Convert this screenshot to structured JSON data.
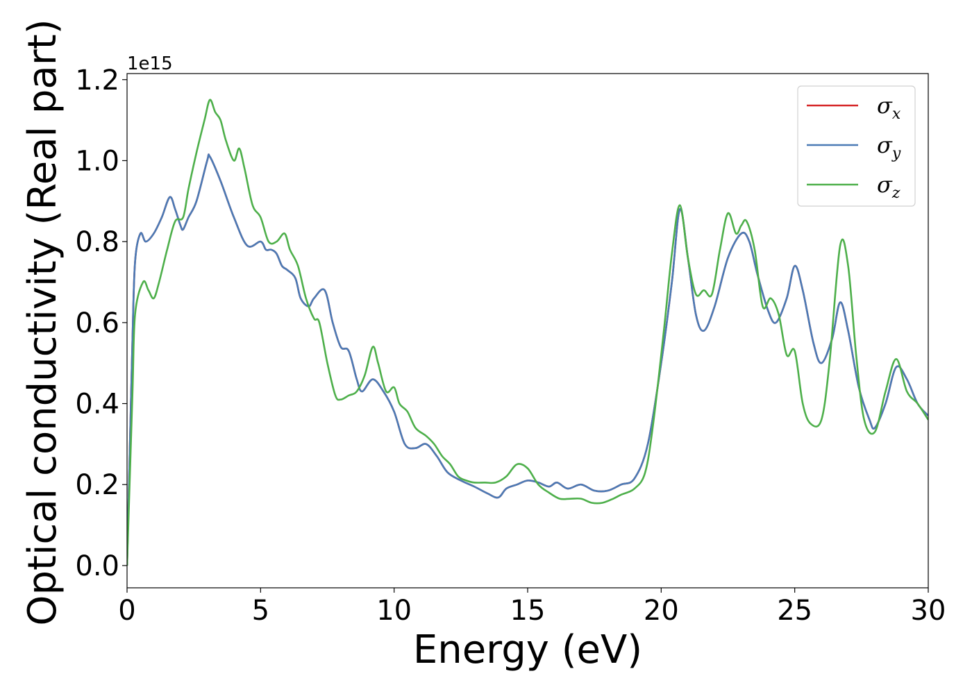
{
  "chart_data": {
    "type": "line",
    "xlabel": "Energy (eV)",
    "ylabel": "Optical conductivity (Real part)",
    "y_offset_text": "1e15",
    "xlim": [
      0,
      30
    ],
    "ylim": [
      -0.055,
      1.215
    ],
    "xticks": [
      0,
      5,
      10,
      15,
      20,
      25,
      30
    ],
    "xtick_labels": [
      "0",
      "5",
      "10",
      "15",
      "20",
      "25",
      "30"
    ],
    "yticks": [
      0.0,
      0.2,
      0.4,
      0.6,
      0.8,
      1.0,
      1.2
    ],
    "ytick_labels": [
      "0.0",
      "0.2",
      "0.4",
      "0.6",
      "0.8",
      "1.0",
      "1.2"
    ],
    "grid": false,
    "legend_position": "top-right",
    "series": [
      {
        "name": "σx",
        "legend_symbol": "σ",
        "legend_sub": "x",
        "color": "#d62728",
        "x": [
          0,
          0.2,
          0.3,
          0.5,
          0.7,
          1.0,
          1.3,
          1.6,
          1.8,
          2.0,
          2.1,
          2.3,
          2.6,
          3.0,
          3.1,
          3.5,
          4.0,
          4.5,
          5.0,
          5.2,
          5.4,
          5.6,
          5.8,
          6.0,
          6.3,
          6.5,
          6.8,
          7.0,
          7.4,
          7.7,
          8.0,
          8.3,
          8.6,
          8.8,
          9.2,
          9.6,
          10.0,
          10.4,
          10.8,
          11.2,
          11.6,
          12.0,
          12.5,
          13.0,
          13.5,
          13.9,
          14.2,
          14.6,
          15.0,
          15.4,
          15.8,
          16.1,
          16.5,
          17.0,
          17.5,
          18.0,
          18.5,
          19.0,
          19.5,
          20.0,
          20.4,
          20.7,
          21.0,
          21.3,
          21.6,
          22.0,
          22.5,
          23.0,
          23.3,
          23.6,
          24.0,
          24.3,
          24.7,
          25.0,
          25.3,
          25.7,
          26.0,
          26.4,
          26.7,
          27.0,
          27.4,
          27.8,
          28.0,
          28.4,
          28.8,
          29.2,
          29.6,
          30.0
        ],
        "y": [
          0.0,
          0.55,
          0.75,
          0.82,
          0.8,
          0.82,
          0.86,
          0.91,
          0.88,
          0.84,
          0.83,
          0.86,
          0.9,
          1.0,
          1.01,
          0.95,
          0.86,
          0.79,
          0.8,
          0.78,
          0.78,
          0.77,
          0.74,
          0.73,
          0.71,
          0.66,
          0.64,
          0.66,
          0.68,
          0.6,
          0.54,
          0.53,
          0.46,
          0.43,
          0.46,
          0.43,
          0.38,
          0.3,
          0.29,
          0.3,
          0.27,
          0.23,
          0.21,
          0.195,
          0.178,
          0.168,
          0.19,
          0.2,
          0.21,
          0.205,
          0.195,
          0.205,
          0.19,
          0.2,
          0.185,
          0.185,
          0.2,
          0.215,
          0.3,
          0.5,
          0.7,
          0.88,
          0.76,
          0.62,
          0.58,
          0.64,
          0.76,
          0.82,
          0.8,
          0.72,
          0.63,
          0.6,
          0.66,
          0.74,
          0.68,
          0.55,
          0.5,
          0.56,
          0.65,
          0.58,
          0.44,
          0.36,
          0.34,
          0.4,
          0.49,
          0.46,
          0.4,
          0.37
        ]
      },
      {
        "name": "σy",
        "legend_symbol": "σ",
        "legend_sub": "y",
        "color": "#4a7ab5",
        "x": [
          0,
          0.2,
          0.3,
          0.5,
          0.7,
          1.0,
          1.3,
          1.6,
          1.8,
          2.0,
          2.1,
          2.3,
          2.6,
          3.0,
          3.1,
          3.5,
          4.0,
          4.5,
          5.0,
          5.2,
          5.4,
          5.6,
          5.8,
          6.0,
          6.3,
          6.5,
          6.8,
          7.0,
          7.4,
          7.7,
          8.0,
          8.3,
          8.6,
          8.8,
          9.2,
          9.6,
          10.0,
          10.4,
          10.8,
          11.2,
          11.6,
          12.0,
          12.5,
          13.0,
          13.5,
          13.9,
          14.2,
          14.6,
          15.0,
          15.4,
          15.8,
          16.1,
          16.5,
          17.0,
          17.5,
          18.0,
          18.5,
          19.0,
          19.5,
          20.0,
          20.4,
          20.7,
          21.0,
          21.3,
          21.6,
          22.0,
          22.5,
          23.0,
          23.3,
          23.6,
          24.0,
          24.3,
          24.7,
          25.0,
          25.3,
          25.7,
          26.0,
          26.4,
          26.7,
          27.0,
          27.4,
          27.8,
          28.0,
          28.4,
          28.8,
          29.2,
          29.6,
          30.0
        ],
        "y": [
          0.0,
          0.55,
          0.75,
          0.82,
          0.8,
          0.82,
          0.86,
          0.91,
          0.88,
          0.84,
          0.83,
          0.86,
          0.9,
          1.0,
          1.01,
          0.95,
          0.86,
          0.79,
          0.8,
          0.78,
          0.78,
          0.77,
          0.74,
          0.73,
          0.71,
          0.66,
          0.64,
          0.66,
          0.68,
          0.6,
          0.54,
          0.53,
          0.46,
          0.43,
          0.46,
          0.43,
          0.38,
          0.3,
          0.29,
          0.3,
          0.27,
          0.23,
          0.21,
          0.195,
          0.178,
          0.168,
          0.19,
          0.2,
          0.21,
          0.205,
          0.195,
          0.205,
          0.19,
          0.2,
          0.185,
          0.185,
          0.2,
          0.215,
          0.3,
          0.5,
          0.7,
          0.88,
          0.76,
          0.62,
          0.58,
          0.64,
          0.76,
          0.82,
          0.8,
          0.72,
          0.63,
          0.6,
          0.66,
          0.74,
          0.68,
          0.55,
          0.5,
          0.56,
          0.65,
          0.58,
          0.44,
          0.36,
          0.34,
          0.4,
          0.49,
          0.46,
          0.4,
          0.37
        ]
      },
      {
        "name": "σz",
        "legend_symbol": "σ",
        "legend_sub": "z",
        "color": "#4daf4a",
        "x": [
          0,
          0.2,
          0.3,
          0.6,
          0.8,
          1.0,
          1.2,
          1.5,
          1.8,
          2.1,
          2.3,
          2.6,
          2.9,
          3.1,
          3.3,
          3.5,
          3.7,
          4.0,
          4.2,
          4.4,
          4.7,
          5.0,
          5.3,
          5.6,
          5.9,
          6.1,
          6.4,
          6.7,
          7.0,
          7.2,
          7.5,
          7.8,
          8.0,
          8.3,
          8.6,
          8.9,
          9.2,
          9.4,
          9.7,
          10.0,
          10.2,
          10.5,
          10.8,
          11.2,
          11.5,
          11.8,
          12.1,
          12.4,
          12.7,
          13.0,
          13.4,
          13.8,
          14.2,
          14.6,
          15.0,
          15.4,
          15.8,
          16.2,
          16.6,
          17.0,
          17.4,
          17.8,
          18.2,
          18.5,
          19.0,
          19.4,
          19.7,
          20.1,
          20.4,
          20.7,
          21.0,
          21.3,
          21.6,
          21.9,
          22.2,
          22.5,
          22.8,
          23.0,
          23.2,
          23.5,
          23.8,
          24.1,
          24.4,
          24.7,
          25.0,
          25.3,
          25.6,
          26.0,
          26.3,
          26.7,
          27.0,
          27.3,
          27.6,
          28.0,
          28.4,
          28.8,
          29.2,
          29.6,
          30.0
        ],
        "y": [
          0.0,
          0.42,
          0.62,
          0.7,
          0.68,
          0.66,
          0.7,
          0.78,
          0.85,
          0.86,
          0.93,
          1.02,
          1.1,
          1.15,
          1.12,
          1.1,
          1.05,
          1.0,
          1.03,
          0.98,
          0.89,
          0.86,
          0.8,
          0.8,
          0.82,
          0.78,
          0.74,
          0.66,
          0.61,
          0.6,
          0.5,
          0.42,
          0.41,
          0.42,
          0.43,
          0.47,
          0.54,
          0.5,
          0.43,
          0.44,
          0.4,
          0.38,
          0.34,
          0.32,
          0.3,
          0.27,
          0.25,
          0.22,
          0.21,
          0.205,
          0.205,
          0.205,
          0.22,
          0.25,
          0.24,
          0.2,
          0.18,
          0.165,
          0.165,
          0.165,
          0.155,
          0.155,
          0.165,
          0.175,
          0.19,
          0.23,
          0.35,
          0.58,
          0.77,
          0.89,
          0.76,
          0.67,
          0.68,
          0.67,
          0.78,
          0.87,
          0.82,
          0.84,
          0.85,
          0.78,
          0.64,
          0.66,
          0.62,
          0.52,
          0.53,
          0.4,
          0.35,
          0.36,
          0.5,
          0.79,
          0.74,
          0.52,
          0.36,
          0.33,
          0.43,
          0.51,
          0.43,
          0.4,
          0.36
        ]
      }
    ]
  }
}
